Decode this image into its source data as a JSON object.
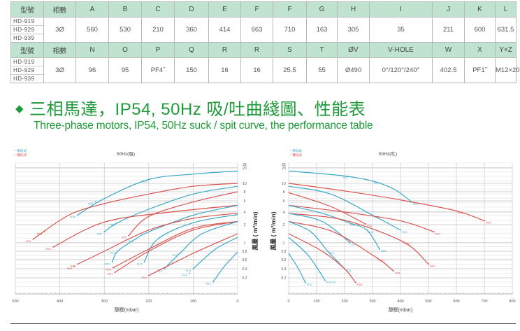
{
  "spec_table": {
    "header1": [
      "型號",
      "相數",
      "A",
      "B",
      "C",
      "D",
      "E",
      "F",
      "F",
      "G",
      "H",
      "I",
      "J",
      "K",
      "L"
    ],
    "models": [
      "HD-919",
      "HD-929",
      "HD-939"
    ],
    "row1": [
      "3Ø",
      "560",
      "530",
      "210",
      "360",
      "414",
      "663",
      "710",
      "163",
      "305",
      "35",
      "211",
      "600",
      "631.5"
    ],
    "header2": [
      "型號",
      "相數",
      "N",
      "O",
      "P",
      "Q",
      "R",
      "R",
      "S",
      "T",
      "ØV",
      "V-HOLE",
      "W",
      "X",
      "Y×Z"
    ],
    "row2": [
      "3Ø",
      "96",
      "95",
      "PF4˝",
      "150",
      "16",
      "16",
      "25.5",
      "55",
      "Ø490",
      "0°/120°/240°",
      "402.5",
      "PF1˝",
      "M12×20"
    ]
  },
  "heading": {
    "bullet": "◆",
    "title_zh": "三相馬達，IP54, 50Hz  吸/吐曲綫圖、性能表",
    "title_en": "Three-phase motors, IP54, 50Hz suck / spit curve, the performance table"
  },
  "colors": {
    "accent_green": "#1f9a3a",
    "header_bg": "#bfe3cf",
    "single_stage": "#3aa8c8",
    "double_stage": "#d9534f"
  },
  "chart_data": [
    {
      "type": "line",
      "title": "50Hz(吸)",
      "xlabel": "靜壓(mbar)",
      "ylabel": "風量 ( m³/min)",
      "xlim": [
        500,
        0
      ],
      "x_ticks": [
        "500",
        "400",
        "300",
        "200",
        "100",
        "0"
      ],
      "y_ticks": [
        "25",
        "20",
        "10",
        "8",
        "6",
        "4",
        "2",
        "1",
        "0.8",
        "0.6",
        "0.4",
        "0.2"
      ],
      "grid": true,
      "legend": {
        "placement": "top-left",
        "entries": [
          {
            "name": "一單段式",
            "color": "#3aa8c8"
          },
          {
            "name": "一雙段式",
            "color": "#d9534f"
          }
        ]
      },
      "series": [
        {
          "stage": "single",
          "points": [
            [
              0,
              18
            ],
            [
              100,
              16
            ],
            [
              200,
              12.5
            ],
            [
              300,
              6.5
            ],
            [
              360,
              3.5
            ]
          ],
          "labels": [
            [
              200,
              12.5,
              "R23"
            ],
            [
              320,
              5.8,
              "R24"
            ],
            [
              360,
              3.5,
              "R25"
            ]
          ]
        },
        {
          "stage": "double",
          "points": [
            [
              0,
              10
            ],
            [
              100,
              9.3
            ],
            [
              200,
              7.5
            ],
            [
              300,
              5.5
            ],
            [
              380,
              3.5
            ],
            [
              460,
              1.2
            ]
          ],
          "labels": [
            [
              435,
              1.6,
              "R33"
            ],
            [
              460,
              1.2,
              "R34"
            ]
          ]
        },
        {
          "stage": "single",
          "points": [
            [
              0,
              9.3
            ],
            [
              100,
              7.5
            ],
            [
              200,
              4.5
            ],
            [
              270,
              2.3
            ],
            [
              300,
              1.6
            ]
          ],
          "labels": [
            [
              270,
              2.3,
              "R21"
            ],
            [
              300,
              1.6,
              "R22"
            ]
          ]
        },
        {
          "stage": "double",
          "points": [
            [
              0,
              8
            ],
            [
              100,
              5.8
            ],
            [
              200,
              3.3
            ],
            [
              245,
              1.4
            ]
          ],
          "labels": [
            [
              245,
              1.4,
              "R32"
            ]
          ]
        },
        {
          "stage": "double",
          "points": [
            [
              0,
              5.2
            ],
            [
              150,
              4
            ],
            [
              300,
              2.4
            ],
            [
              415,
              0.9
            ]
          ],
          "labels": [
            [
              415,
              0.9,
              "R31"
            ]
          ]
        },
        {
          "stage": "single",
          "points": [
            [
              0,
              5.2
            ],
            [
              100,
              3.5
            ],
            [
              200,
              1.6
            ],
            [
              230,
              1.2
            ],
            [
              270,
              0.8
            ],
            [
              282,
              0.55
            ]
          ],
          "labels": [
            [
              230,
              1.2,
              "R18"
            ],
            [
              270,
              0.8,
              "R19"
            ],
            [
              282,
              0.55,
              "R20"
            ]
          ]
        },
        {
          "stage": "double",
          "points": [
            [
              0,
              3.8
            ],
            [
              100,
              3
            ],
            [
              200,
              1.7
            ],
            [
              300,
              0.8
            ],
            [
              360,
              0.5
            ]
          ],
          "labels": [
            [
              360,
              0.5,
              "R29"
            ],
            [
              368,
              0.45,
              "R30"
            ]
          ]
        },
        {
          "stage": "single",
          "points": [
            [
              0,
              3.6
            ],
            [
              100,
              2.3
            ],
            [
              180,
              1.2
            ],
            [
              210,
              0.55
            ]
          ],
          "labels": [
            [
              210,
              0.55,
              "R17"
            ]
          ]
        },
        {
          "stage": "double",
          "points": [
            [
              0,
              2.5
            ],
            [
              100,
              1.8
            ],
            [
              200,
              0.85
            ],
            [
              280,
              0.42
            ]
          ],
          "labels": [
            [
              280,
              0.42,
              "R28"
            ]
          ]
        },
        {
          "stage": "double",
          "points": [
            [
              0,
              2.5
            ],
            [
              100,
              1.7
            ],
            [
              200,
              0.8
            ],
            [
              276,
              0.32
            ]
          ],
          "labels": [
            [
              276,
              0.32,
              "R27"
            ]
          ]
        },
        {
          "stage": "single",
          "points": [
            [
              0,
              2.5
            ],
            [
              80,
              1.5
            ],
            [
              130,
              0.75
            ],
            [
              165,
              0.4
            ]
          ],
          "labels": [
            [
              130,
              0.75,
              "R15"
            ],
            [
              165,
              0.4,
              "R16"
            ]
          ]
        },
        {
          "stage": "double",
          "points": [
            [
              0,
              1.5
            ],
            [
              100,
              0.75
            ],
            [
              200,
              0.25
            ]
          ],
          "labels": [
            [
              200,
              0.25,
              "R26"
            ]
          ]
        },
        {
          "stage": "single",
          "points": [
            [
              0,
              1.3
            ],
            [
              50,
              0.85
            ],
            [
              100,
              0.4
            ]
          ],
          "labels": [
            [
              100,
              0.4,
              "R14"
            ],
            [
              108,
              0.3,
              "R13"
            ]
          ]
        },
        {
          "stage": "single",
          "points": [
            [
              0,
              0.78
            ],
            [
              30,
              0.45
            ],
            [
              55,
              0.12
            ]
          ],
          "labels": [
            [
              55,
              0.12,
              "R12"
            ]
          ]
        }
      ]
    },
    {
      "type": "line",
      "title": "50Hz(吐)",
      "xlabel": "靜壓(mbar)",
      "ylabel": "風量 ( m³/min)",
      "xlim": [
        0,
        800
      ],
      "x_ticks": [
        "0",
        "100",
        "200",
        "300",
        "400",
        "500",
        "600",
        "700",
        "800"
      ],
      "y_ticks": [
        "25",
        "20",
        "10",
        "8",
        "6",
        "4",
        "2",
        "1",
        "0.8",
        "0.6",
        "0.4",
        "0.2"
      ],
      "grid": true,
      "legend": {
        "placement": "top-left",
        "entries": [
          {
            "name": "一單段式",
            "color": "#3aa8c8"
          },
          {
            "name": "一雙段式",
            "color": "#d9534f"
          }
        ]
      },
      "series": [
        {
          "stage": "single",
          "points": [
            [
              0,
              18
            ],
            [
              190,
              15
            ],
            [
              300,
              11.5
            ],
            [
              380,
              8.5
            ],
            [
              440,
              5.8
            ]
          ],
          "labels": [
            [
              190,
              15,
              "R23"
            ],
            [
              300,
              11.5,
              "R24"
            ],
            [
              440,
              5.8,
              "R25"
            ]
          ]
        },
        {
          "stage": "double",
          "points": [
            [
              0,
              10
            ],
            [
              200,
              8.2
            ],
            [
              400,
              6.2
            ],
            [
              600,
              4.2
            ],
            [
              700,
              2.6
            ]
          ],
          "labels": [
            [
              600,
              4.2,
              "R33"
            ],
            [
              700,
              2.6,
              "R34"
            ]
          ]
        },
        {
          "stage": "single",
          "points": [
            [
              0,
              9.3
            ],
            [
              150,
              7.5
            ],
            [
              300,
              3.5
            ],
            [
              400,
              1.7
            ]
          ],
          "labels": [
            [
              300,
              3.5,
              "R21"
            ],
            [
              400,
              1.7,
              "R22"
            ]
          ]
        },
        {
          "stage": "double",
          "points": [
            [
              0,
              7.8
            ],
            [
              150,
              5
            ],
            [
              275,
              2.1
            ]
          ],
          "labels": [
            [
              275,
              2.1,
              "R32"
            ]
          ]
        },
        {
          "stage": "double",
          "points": [
            [
              0,
              5.2
            ],
            [
              200,
              4
            ],
            [
              400,
              2.6
            ],
            [
              520,
              1.6
            ]
          ],
          "labels": [
            [
              520,
              1.6,
              "R31"
            ]
          ]
        },
        {
          "stage": "single",
          "points": [
            [
              0,
              5.2
            ],
            [
              120,
              3.8
            ],
            [
              215,
              2.3
            ],
            [
              280,
              1.7
            ],
            [
              325,
              0.85
            ]
          ],
          "labels": [
            [
              215,
              2.3,
              "R18"
            ],
            [
              280,
              1.7,
              "R19"
            ],
            [
              325,
              0.85,
              "R20"
            ]
          ]
        },
        {
          "stage": "double",
          "points": [
            [
              0,
              3.8
            ],
            [
              200,
              2.7
            ],
            [
              410,
              1.05
            ],
            [
              500,
              0.5
            ]
          ],
          "labels": [
            [
              410,
              1.05,
              "R29"
            ],
            [
              500,
              0.5,
              "R30"
            ]
          ]
        },
        {
          "stage": "single",
          "points": [
            [
              0,
              3.8
            ],
            [
              120,
              2.5
            ],
            [
              220,
              1
            ]
          ],
          "labels": [
            [
              220,
              1,
              "R17"
            ]
          ]
        },
        {
          "stage": "double",
          "points": [
            [
              0,
              2.5
            ],
            [
              160,
              1.6
            ],
            [
              320,
              0.62
            ],
            [
              375,
              0.35
            ]
          ],
          "labels": [
            [
              320,
              0.62,
              "R27"
            ],
            [
              375,
              0.35,
              "R28"
            ]
          ]
        },
        {
          "stage": "single",
          "points": [
            [
              0,
              2.5
            ],
            [
              80,
              1.6
            ],
            [
              140,
              0.8
            ],
            [
              200,
              0.4
            ]
          ],
          "labels": [
            [
              140,
              0.8,
              "R11"
            ],
            [
              200,
              0.4,
              "R15"
            ]
          ]
        },
        {
          "stage": "double",
          "points": [
            [
              0,
              1.5
            ],
            [
              120,
              0.8
            ],
            [
              200,
              0.4
            ],
            [
              240,
              0.1
            ]
          ],
          "labels": [
            [
              240,
              0.1,
              "R26"
            ]
          ]
        },
        {
          "stage": "single",
          "points": [
            [
              0,
              1.3
            ],
            [
              70,
              0.7
            ],
            [
              130,
              0.15
            ]
          ],
          "labels": [
            [
              130,
              0.15,
              "R13,14"
            ]
          ]
        },
        {
          "stage": "single",
          "points": [
            [
              0,
              0.75
            ],
            [
              35,
              0.4
            ],
            [
              60,
              0.1
            ]
          ],
          "labels": [
            [
              60,
              0.1,
              "R12"
            ]
          ]
        }
      ]
    }
  ]
}
